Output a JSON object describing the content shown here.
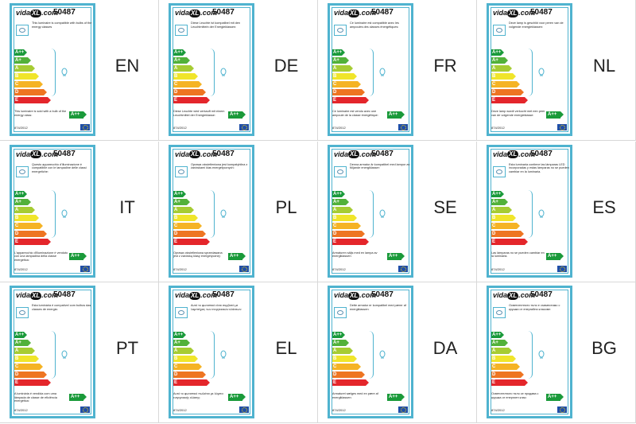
{
  "product_code": "50487",
  "logo": {
    "prefix": "vida",
    "mark": "XL",
    "suffix": ".com"
  },
  "regulation": "874/2012",
  "rating_label": "A++",
  "energy_classes": [
    {
      "label": "A++",
      "color": "#1a9a3a"
    },
    {
      "label": "A+",
      "color": "#52b13a"
    },
    {
      "label": "A",
      "color": "#a6cc33"
    },
    {
      "label": "B",
      "color": "#f0e52a"
    },
    {
      "label": "C",
      "color": "#f5b324"
    },
    {
      "label": "D",
      "color": "#ee7522"
    },
    {
      "label": "E",
      "color": "#e4262b"
    }
  ],
  "labels": [
    {
      "lang": "EN",
      "top_text": "This luminaire is compatible with bulbs of the energy classes",
      "bottom_text": "This luminaire is sold with a bulb of the energy class:"
    },
    {
      "lang": "DE",
      "top_text": "Diese Leuchte ist kompatibel mit den Leuchtmitteln der Energieklassen:",
      "bottom_text": "Diese Leuchte wird verkauft mit einem Leuchtmittel der Energieklasse:"
    },
    {
      "lang": "FR",
      "top_text": "Ce luminaire est compatible avec les ampoules des classes énergétiques:",
      "bottom_text": "Ce luminaire est vendu avec une ampoule de la classe énergétique:"
    },
    {
      "lang": "NL",
      "top_text": "Deze lamp is geschikt voor peren van de volgende energieklassen:",
      "bottom_text": "Deze lamp wordt verkocht met een peer van de volgende energieklasse:"
    },
    {
      "lang": "IT",
      "top_text": "Questo apparecchio d'illuminazione è compatibile con le lampadine delle classi energetiche:",
      "bottom_text": "L'apparecchio d'illuminazione è venduto con una lampadina della classe energetica:"
    },
    {
      "lang": "PL",
      "top_text": "Oprawa oświetleniowa jest kompatybilna z żarówkami klas energetycznych:",
      "bottom_text": "Oprawa oświetleniowa sprzedawana jest z żarówką klasy energetycznej:"
    },
    {
      "lang": "SE",
      "top_text": "Denna armatur är kompatibel med lampor av följande energiklasser:",
      "bottom_text": "Armaturen säljs med en lampa av energiklassen:"
    },
    {
      "lang": "ES",
      "top_text": "Esta luminaria contiene las lámparas LED incorporadas y estas lámparas no se pueden cambiar en la luminaria.",
      "bottom_text": "Las lámparas no se pueden cambiar en la luminaria."
    },
    {
      "lang": "PT",
      "top_text": "Esta luminária é compatível com bulbos das classes de energia:",
      "bottom_text": "A luminária é vendida com uma lâmpada de classe de eficiência energética:"
    },
    {
      "lang": "EL",
      "top_text": "Αυτό το φωτιστικό είναι συμβατό με λαμπτήρες των ενεργειακών κλάσεων:",
      "bottom_text": "Αυτό το φωτιστικό πωλείται με λάμπα ενεργειακής κλάσης:"
    },
    {
      "lang": "DA",
      "top_text": "Dette armatur er kompatibel med pærer af energiklassen:",
      "bottom_text": "Armaturet sælges med en pære af energiklassen:"
    },
    {
      "lang": "BG",
      "top_text": "Осветителното тяло е съвместимо с крушки от енергийни класове:",
      "bottom_text": "Осветителното тяло се продава с крушка от енергиен клас:"
    }
  ]
}
